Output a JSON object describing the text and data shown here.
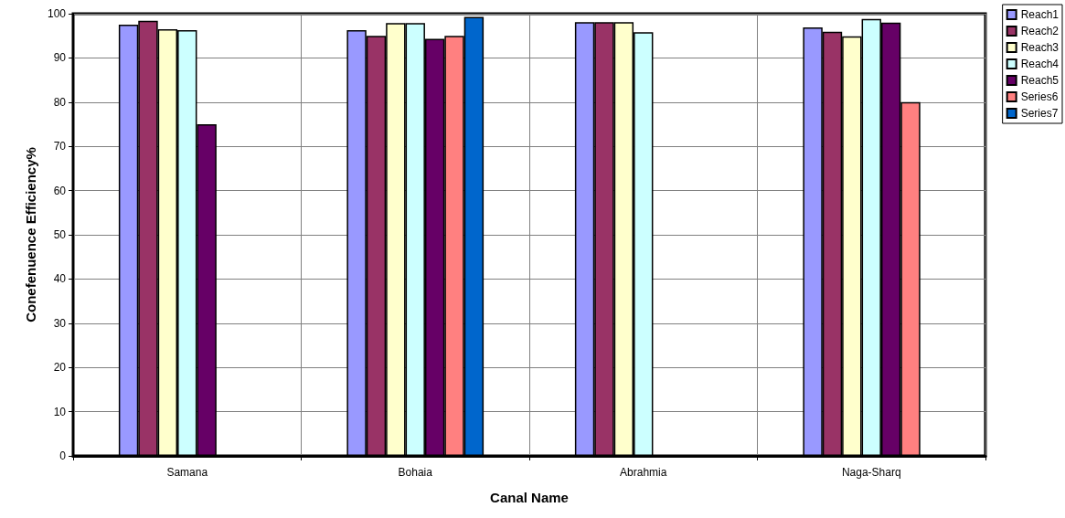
{
  "chart_data": {
    "type": "bar",
    "xlabel": "Canal Name",
    "ylabel": "Conefenuence Efficiency%",
    "categories": [
      "Samana",
      "Bohaia",
      "Abrahmia",
      "Naga-Sharq"
    ],
    "series": [
      {
        "name": "Reach1",
        "color": "#9999ff",
        "values": [
          97.5,
          96.3,
          98.1,
          96.9
        ]
      },
      {
        "name": "Reach2",
        "color": "#993366",
        "values": [
          98.4,
          95.0,
          98.1,
          95.9
        ]
      },
      {
        "name": "Reach3",
        "color": "#ffffcc",
        "values": [
          96.5,
          97.9,
          98.1,
          94.9
        ]
      },
      {
        "name": "Reach4",
        "color": "#ccffff",
        "values": [
          96.3,
          97.9,
          95.8,
          98.8
        ]
      },
      {
        "name": "Reach5",
        "color": "#660066",
        "values": [
          75,
          94.3,
          null,
          98.0
        ]
      },
      {
        "name": "Series6",
        "color": "#ff8080",
        "values": [
          null,
          95.0,
          null,
          80
        ]
      },
      {
        "name": "Series7",
        "color": "#0066cc",
        "values": [
          null,
          99.3,
          null,
          null
        ]
      }
    ],
    "ylim": [
      0,
      100
    ],
    "yticks": [
      0,
      10,
      20,
      30,
      40,
      50,
      60,
      70,
      80,
      90,
      100
    ],
    "grid": true,
    "legend": "top right"
  }
}
